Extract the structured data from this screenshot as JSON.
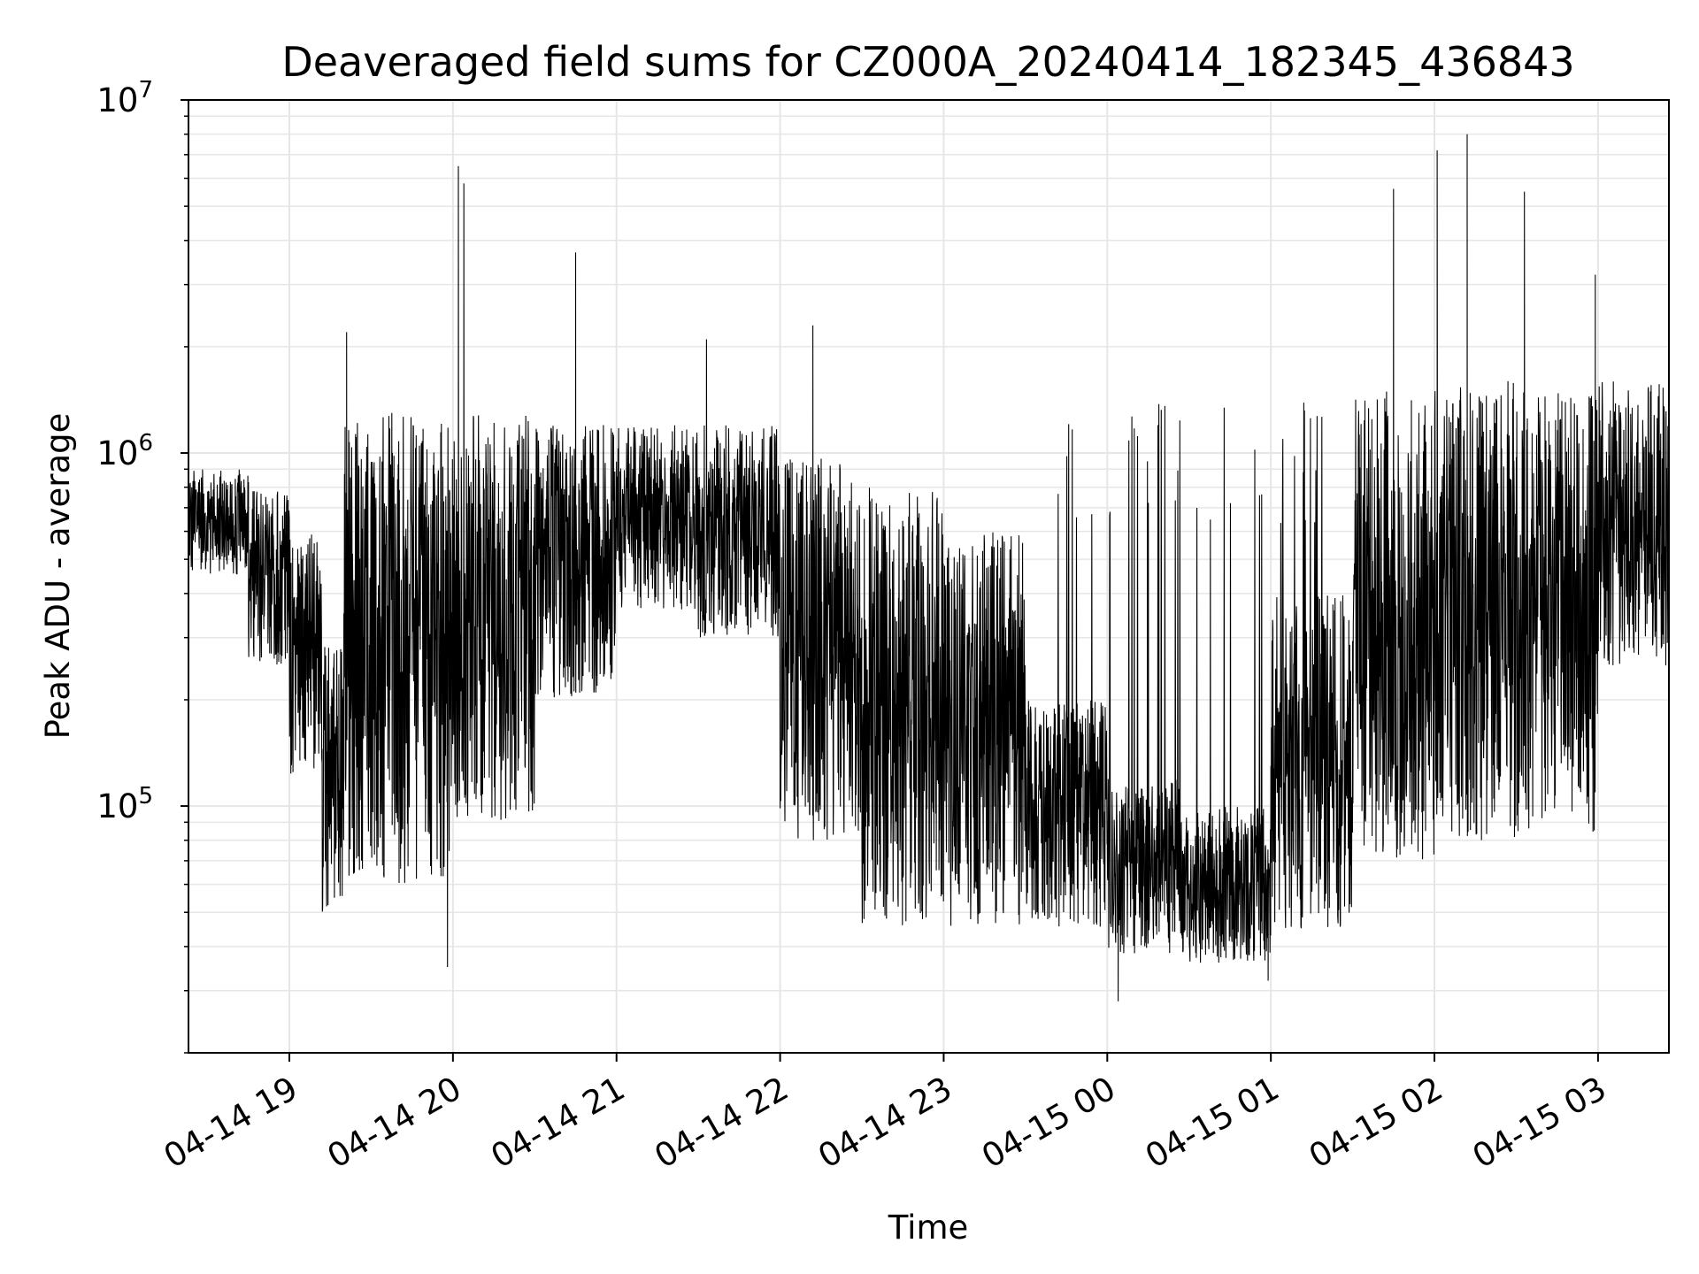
{
  "chart_data": {
    "type": "line",
    "title": "Deaveraged field sums for CZ000A_20240414_182345_436843",
    "xlabel": "Time",
    "ylabel": "Peak ADU - average",
    "yscale": "log",
    "ylim": [
      20000,
      10000000
    ],
    "xlim": [
      "2024-04-14 18:23",
      "2024-04-15 03:26"
    ],
    "grid": true,
    "line_color": "#000000",
    "grid_color": "#e6e6e6",
    "x_ticks": [
      {
        "value": "2024-04-14 19:00",
        "label": "04-14 19"
      },
      {
        "value": "2024-04-14 20:00",
        "label": "04-14 20"
      },
      {
        "value": "2024-04-14 21:00",
        "label": "04-14 21"
      },
      {
        "value": "2024-04-14 22:00",
        "label": "04-14 22"
      },
      {
        "value": "2024-04-14 23:00",
        "label": "04-14 23"
      },
      {
        "value": "2024-04-15 00:00",
        "label": "04-15 00"
      },
      {
        "value": "2024-04-15 01:00",
        "label": "04-15 01"
      },
      {
        "value": "2024-04-15 02:00",
        "label": "04-15 02"
      },
      {
        "value": "2024-04-15 03:00",
        "label": "04-15 03"
      }
    ],
    "y_ticks": [
      {
        "value": 100000,
        "base": "10",
        "exp": "5"
      },
      {
        "value": 1000000,
        "base": "10",
        "exp": "6"
      },
      {
        "value": 10000000,
        "base": "10",
        "exp": "7"
      }
    ],
    "series": [
      {
        "color": "#000000",
        "segments": [
          {
            "start": "2024-04-14 18:23",
            "end": "2024-04-14 18:45",
            "high": 900000,
            "low": 450000
          },
          {
            "start": "2024-04-14 18:45",
            "end": "2024-04-14 19:00",
            "high": 800000,
            "low": 250000
          },
          {
            "start": "2024-04-14 19:00",
            "end": "2024-04-14 19:12",
            "high": 600000,
            "low": 120000
          },
          {
            "start": "2024-04-14 19:12",
            "end": "2024-04-14 19:20",
            "high": 300000,
            "low": 50000
          },
          {
            "start": "2024-04-14 19:20",
            "end": "2024-04-14 20:00",
            "high": 1300000,
            "low": 60000
          },
          {
            "start": "2024-04-14 20:00",
            "end": "2024-04-14 20:30",
            "high": 1300000,
            "low": 90000
          },
          {
            "start": "2024-04-14 20:30",
            "end": "2024-04-14 21:00",
            "high": 1200000,
            "low": 200000
          },
          {
            "start": "2024-04-14 21:00",
            "end": "2024-04-14 21:30",
            "high": 1200000,
            "low": 350000
          },
          {
            "start": "2024-04-14 21:30",
            "end": "2024-04-14 22:00",
            "high": 1200000,
            "low": 300000
          },
          {
            "start": "2024-04-14 22:00",
            "end": "2024-04-14 22:30",
            "high": 1000000,
            "low": 80000
          },
          {
            "start": "2024-04-14 22:30",
            "end": "2024-04-14 23:00",
            "high": 800000,
            "low": 45000
          },
          {
            "start": "2024-04-14 23:00",
            "end": "2024-04-14 23:30",
            "high": 600000,
            "low": 45000
          },
          {
            "start": "2024-04-14 23:30",
            "end": "2024-04-15 00:00",
            "high": 200000,
            "low": 45000
          },
          {
            "start": "2024-04-15 00:00",
            "end": "2024-04-15 00:30",
            "high": 120000,
            "low": 38000
          },
          {
            "start": "2024-04-15 00:30",
            "end": "2024-04-15 01:00",
            "high": 100000,
            "low": 36000
          },
          {
            "start": "2024-04-15 01:00",
            "end": "2024-04-15 01:30",
            "high": 400000,
            "low": 45000
          },
          {
            "start": "2024-04-15 01:30",
            "end": "2024-04-15 02:00",
            "high": 1500000,
            "low": 70000
          },
          {
            "start": "2024-04-15 02:00",
            "end": "2024-04-15 02:30",
            "high": 1600000,
            "low": 80000
          },
          {
            "start": "2024-04-15 02:30",
            "end": "2024-04-15 03:00",
            "high": 1500000,
            "low": 80000
          },
          {
            "start": "2024-04-15 03:00",
            "end": "2024-04-15 03:26",
            "high": 1600000,
            "low": 250000
          }
        ],
        "sparse_spikes": [
          {
            "start": "2024-04-14 23:40",
            "end": "2024-04-15 01:20",
            "high": 1400000
          }
        ],
        "peaks": [
          {
            "x": "2024-04-14 19:21",
            "y": 2200000
          },
          {
            "x": "2024-04-14 20:02",
            "y": 6500000
          },
          {
            "x": "2024-04-14 20:04",
            "y": 5800000
          },
          {
            "x": "2024-04-14 20:45",
            "y": 3700000
          },
          {
            "x": "2024-04-14 21:33",
            "y": 2100000
          },
          {
            "x": "2024-04-14 22:12",
            "y": 2300000
          },
          {
            "x": "2024-04-15 01:45",
            "y": 5600000
          },
          {
            "x": "2024-04-15 02:01",
            "y": 7200000
          },
          {
            "x": "2024-04-15 02:12",
            "y": 8000000
          },
          {
            "x": "2024-04-15 02:33",
            "y": 5500000
          },
          {
            "x": "2024-04-15 02:59",
            "y": 3200000
          }
        ],
        "troughs": [
          {
            "x": "2024-04-14 19:58",
            "y": 35000
          },
          {
            "x": "2024-04-15 00:04",
            "y": 28000
          },
          {
            "x": "2024-04-15 00:59",
            "y": 32000
          }
        ]
      }
    ]
  }
}
